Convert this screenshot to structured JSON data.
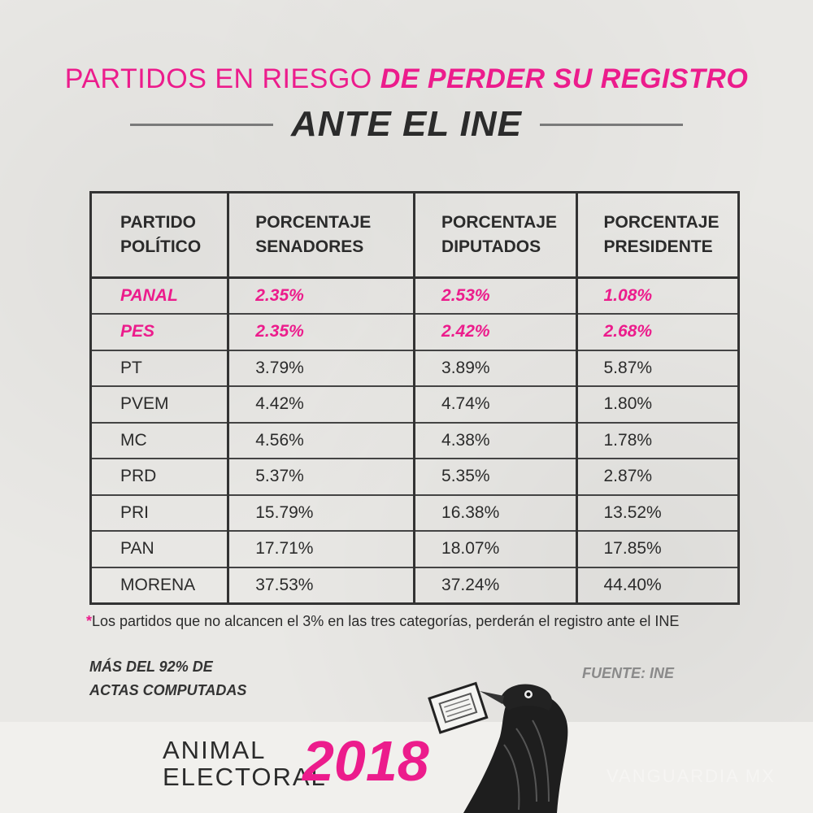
{
  "title": {
    "part1": "PARTIDOS EN RIESGO ",
    "part2": "DE PERDER SU REGISTRO",
    "subtitle": "ANTE EL INE"
  },
  "chart_data": {
    "type": "table",
    "columns": [
      "PARTIDO POLÍTICO",
      "PORCENTAJE SENADORES",
      "PORCENTAJE DIPUTADOS",
      "PORCENTAJE PRESIDENTE"
    ],
    "rows": [
      {
        "party": "PANAL",
        "senadores": "2.35%",
        "diputados": "2.53%",
        "presidente": "1.08%",
        "highlight": true
      },
      {
        "party": "PES",
        "senadores": "2.35%",
        "diputados": "2.42%",
        "presidente": "2.68%",
        "highlight": true
      },
      {
        "party": "PT",
        "senadores": "3.79%",
        "diputados": "3.89%",
        "presidente": "5.87%",
        "highlight": false
      },
      {
        "party": "PVEM",
        "senadores": "4.42%",
        "diputados": "4.74%",
        "presidente": "1.80%",
        "highlight": false
      },
      {
        "party": "MC",
        "senadores": "4.56%",
        "diputados": "4.38%",
        "presidente": "1.78%",
        "highlight": false
      },
      {
        "party": "PRD",
        "senadores": "5.37%",
        "diputados": "5.35%",
        "presidente": "2.87%",
        "highlight": false
      },
      {
        "party": "PRI",
        "senadores": "15.79%",
        "diputados": "16.38%",
        "presidente": "13.52%",
        "highlight": false
      },
      {
        "party": "PAN",
        "senadores": "17.71%",
        "diputados": "18.07%",
        "presidente": "17.85%",
        "highlight": false
      },
      {
        "party": "MORENA",
        "senadores": "37.53%",
        "diputados": "37.24%",
        "presidente": "44.40%",
        "highlight": false
      }
    ]
  },
  "footnote": {
    "star": "*",
    "text": "Los partidos que no alcancen el 3% en las tres categorías, perderán el registro ante el INE"
  },
  "actas": {
    "line1": "MÁS DEL 92% DE",
    "line2": "ACTAS COMPUTADAS"
  },
  "source": "FUENTE: INE",
  "brand": {
    "line1": "ANIMAL",
    "line2": "ELECTORAL",
    "year": "2018"
  },
  "watermark": "VANGUARDIA MX",
  "colors": {
    "accent": "#ec1c8c",
    "text": "#2b2b2b",
    "background": "#e9e8e5"
  }
}
